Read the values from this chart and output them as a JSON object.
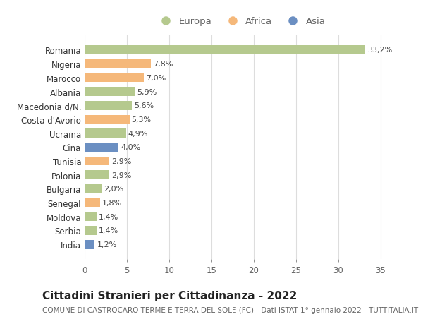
{
  "countries": [
    "India",
    "Serbia",
    "Moldova",
    "Senegal",
    "Bulgaria",
    "Polonia",
    "Tunisia",
    "Cina",
    "Ucraina",
    "Costa d'Avorio",
    "Macedonia d/N.",
    "Albania",
    "Marocco",
    "Nigeria",
    "Romania"
  ],
  "values": [
    1.2,
    1.4,
    1.4,
    1.8,
    2.0,
    2.9,
    2.9,
    4.0,
    4.9,
    5.3,
    5.6,
    5.9,
    7.0,
    7.8,
    33.2
  ],
  "labels": [
    "1,2%",
    "1,4%",
    "1,4%",
    "1,8%",
    "2,0%",
    "2,9%",
    "2,9%",
    "4,0%",
    "4,9%",
    "5,3%",
    "5,6%",
    "5,9%",
    "7,0%",
    "7,8%",
    "33,2%"
  ],
  "continents": [
    "Asia",
    "Europa",
    "Europa",
    "Africa",
    "Europa",
    "Europa",
    "Africa",
    "Asia",
    "Europa",
    "Africa",
    "Europa",
    "Europa",
    "Africa",
    "Africa",
    "Europa"
  ],
  "colors": {
    "Europa": "#b5c98e",
    "Africa": "#f5b87a",
    "Asia": "#6b8fc2"
  },
  "title": "Cittadini Stranieri per Cittadinanza - 2022",
  "subtitle": "COMUNE DI CASTROCARO TERME E TERRA DEL SOLE (FC) - Dati ISTAT 1° gennaio 2022 - TUTTITALIA.IT",
  "xlim": [
    0,
    37
  ],
  "xticks": [
    0,
    5,
    10,
    15,
    20,
    25,
    30,
    35
  ],
  "background_color": "#ffffff",
  "grid_color": "#dddddd",
  "bar_height": 0.65,
  "title_fontsize": 11,
  "subtitle_fontsize": 7.5,
  "label_fontsize": 8,
  "tick_fontsize": 8.5,
  "legend_fontsize": 9.5
}
